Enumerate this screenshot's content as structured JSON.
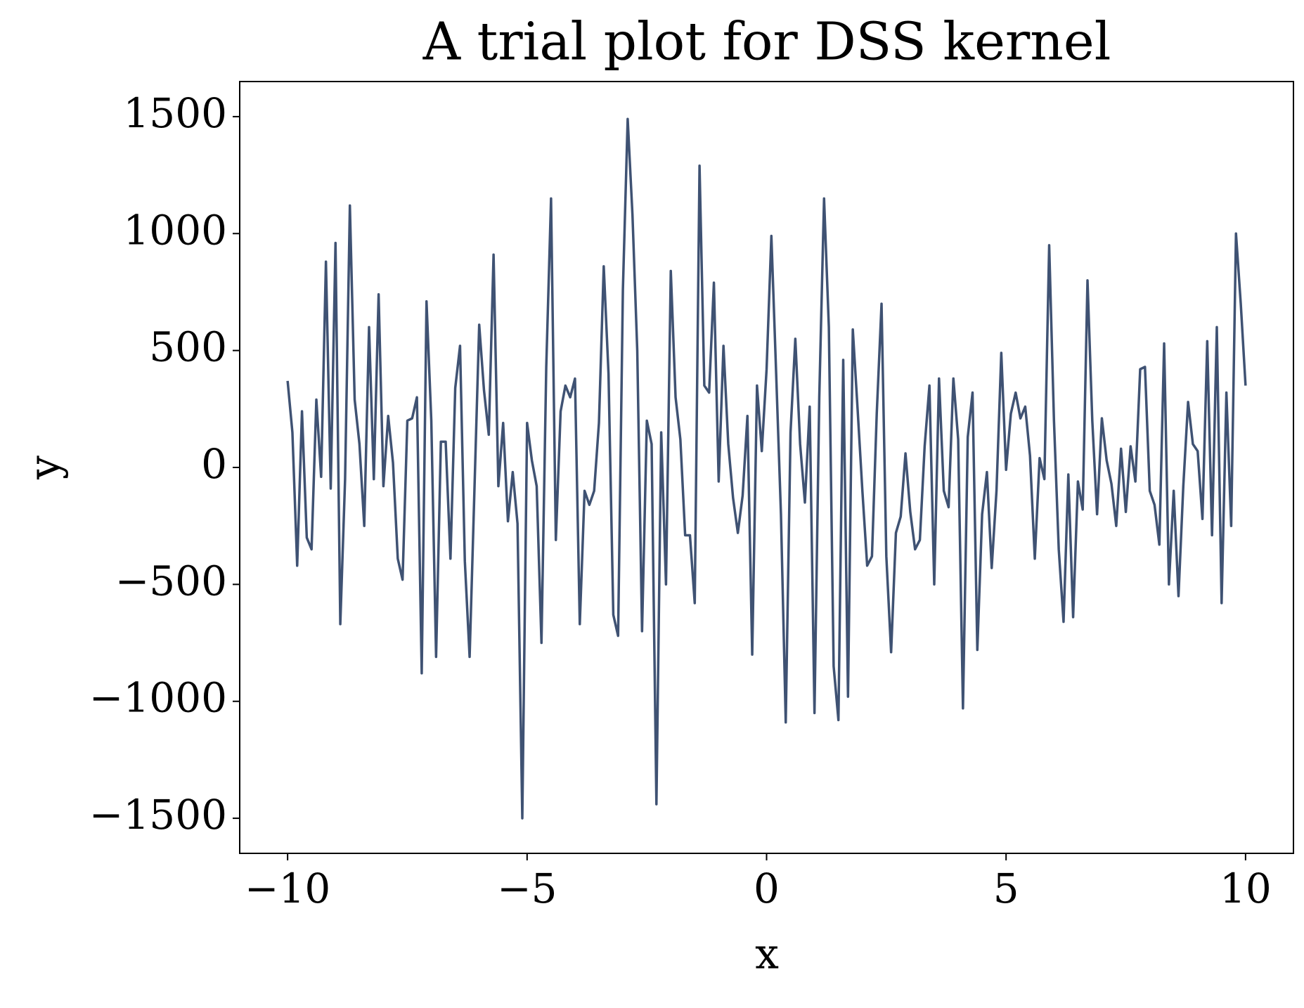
{
  "chart_data": {
    "type": "line",
    "title": "A trial plot for DSS kernel",
    "xlabel": "x",
    "ylabel": "y",
    "x": [
      -10,
      -9.9,
      -9.8,
      -9.7,
      -9.6,
      -9.5,
      -9.4,
      -9.3,
      -9.2,
      -9.1,
      -9,
      -8.9,
      -8.8,
      -8.7,
      -8.6,
      -8.5,
      -8.4,
      -8.3,
      -8.2,
      -8.1,
      -8,
      -7.9,
      -7.8,
      -7.7,
      -7.6,
      -7.5,
      -7.4,
      -7.3,
      -7.2,
      -7.1,
      -7,
      -6.9,
      -6.8,
      -6.7,
      -6.6,
      -6.5,
      -6.4,
      -6.3,
      -6.2,
      -6.1,
      -6,
      -5.9,
      -5.8,
      -5.7,
      -5.6,
      -5.5,
      -5.4,
      -5.3,
      -5.2,
      -5.1,
      -5,
      -4.9,
      -4.8,
      -4.7,
      -4.6,
      -4.5,
      -4.4,
      -4.3,
      -4.2,
      -4.1,
      -4,
      -3.9,
      -3.8,
      -3.7,
      -3.6,
      -3.5,
      -3.4,
      -3.3,
      -3.2,
      -3.1,
      -3,
      -2.9,
      -2.8,
      -2.7,
      -2.6,
      -2.5,
      -2.4,
      -2.3,
      -2.2,
      -2.1,
      -2,
      -1.9,
      -1.8,
      -1.7,
      -1.6,
      -1.5,
      -1.4,
      -1.3,
      -1.2,
      -1.1,
      -1,
      -0.9,
      -0.8,
      -0.7,
      -0.6,
      -0.5,
      -0.4,
      -0.3,
      -0.2,
      -0.1,
      0,
      0.1,
      0.2,
      0.3,
      0.4,
      0.5,
      0.6,
      0.7,
      0.8,
      0.9,
      1,
      1.1,
      1.2,
      1.3,
      1.4,
      1.5,
      1.6,
      1.7,
      1.8,
      1.9,
      2,
      2.1,
      2.2,
      2.3,
      2.4,
      2.5,
      2.6,
      2.7,
      2.8,
      2.9,
      3,
      3.1,
      3.2,
      3.3,
      3.4,
      3.5,
      3.6,
      3.7,
      3.8,
      3.9,
      4,
      4.1,
      4.2,
      4.3,
      4.4,
      4.5,
      4.6,
      4.7,
      4.8,
      4.9,
      5,
      5.1,
      5.2,
      5.3,
      5.4,
      5.5,
      5.6,
      5.7,
      5.8,
      5.9,
      6,
      6.1,
      6.2,
      6.3,
      6.4,
      6.5,
      6.6,
      6.7,
      6.8,
      6.9,
      7,
      7.1,
      7.2,
      7.3,
      7.4,
      7.5,
      7.6,
      7.7,
      7.8,
      7.9,
      8,
      8.1,
      8.2,
      8.3,
      8.4,
      8.5,
      8.6,
      8.7,
      8.8,
      8.9,
      9,
      9.1,
      9.2,
      9.3,
      9.4,
      9.5,
      9.6,
      9.7,
      9.8,
      9.9,
      10
    ],
    "series": [
      {
        "color": "#3f5273",
        "values": [
          370,
          150,
          -420,
          240,
          -300,
          -350,
          290,
          -40,
          880,
          -90,
          960,
          -670,
          -50,
          1120,
          290,
          100,
          -250,
          600,
          -50,
          740,
          -80,
          220,
          20,
          -390,
          -480,
          200,
          210,
          300,
          -880,
          710,
          200,
          -810,
          110,
          110,
          -390,
          340,
          520,
          -400,
          -810,
          -100,
          610,
          330,
          140,
          910,
          -80,
          190,
          -230,
          -20,
          -240,
          -1500,
          190,
          30,
          -80,
          -750,
          430,
          1150,
          -310,
          240,
          350,
          300,
          380,
          -670,
          -100,
          -160,
          -100,
          190,
          860,
          400,
          -630,
          -720,
          760,
          1490,
          1080,
          500,
          -700,
          200,
          100,
          -1440,
          150,
          -500,
          840,
          300,
          120,
          -290,
          -290,
          -580,
          1290,
          350,
          320,
          790,
          -60,
          520,
          100,
          -130,
          -280,
          -120,
          220,
          -800,
          350,
          70,
          420,
          990,
          400,
          -200,
          -1090,
          150,
          550,
          100,
          -150,
          260,
          -1050,
          300,
          1150,
          600,
          -850,
          -1080,
          460,
          -980,
          590,
          250,
          -100,
          -420,
          -380,
          230,
          700,
          -380,
          -790,
          -280,
          -210,
          60,
          -190,
          -350,
          -310,
          90,
          350,
          -500,
          380,
          -100,
          -170,
          380,
          120,
          -1030,
          130,
          320,
          -780,
          -200,
          -20,
          -430,
          -100,
          490,
          -10,
          230,
          320,
          210,
          260,
          50,
          -390,
          40,
          -50,
          950,
          200,
          -350,
          -660,
          -30,
          -640,
          -60,
          -180,
          800,
          200,
          -200,
          210,
          30,
          -70,
          -250,
          80,
          -190,
          90,
          -60,
          420,
          430,
          -100,
          -160,
          -330,
          530,
          -500,
          -100,
          -550,
          -80,
          280,
          100,
          70,
          -220,
          540,
          -290,
          600,
          -580,
          320,
          -250,
          1000,
          700,
          350
        ]
      }
    ],
    "xlim": [
      -11,
      11
    ],
    "ylim": [
      -1650,
      1650
    ],
    "xticks": [
      {
        "value": -10,
        "label": "−10"
      },
      {
        "value": -5,
        "label": "−5"
      },
      0,
      5,
      10
    ],
    "yticks": [
      {
        "value": -1500,
        "label": "−1500"
      },
      {
        "value": -1000,
        "label": "−1000"
      },
      {
        "value": -500,
        "label": "−500"
      },
      0,
      500,
      1000,
      1500
    ],
    "grid": false
  }
}
